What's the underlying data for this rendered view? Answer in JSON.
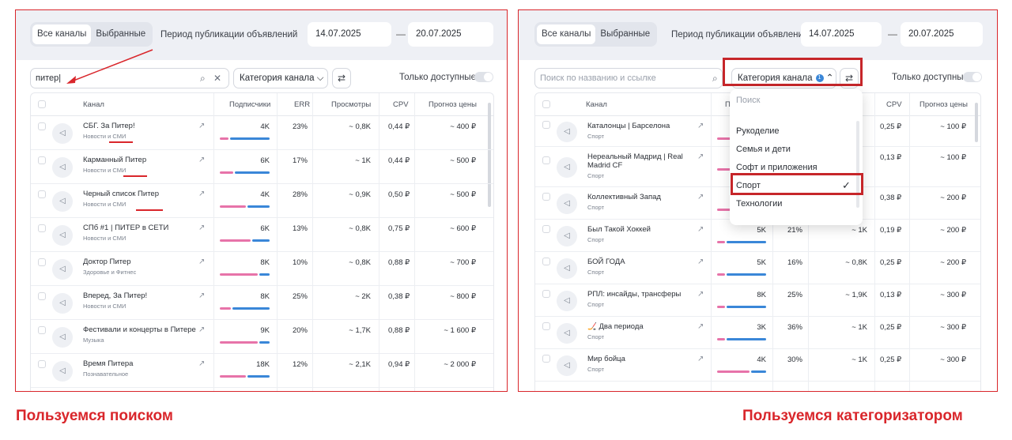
{
  "left": {
    "tabs": [
      "Все каналы",
      "Выбранные"
    ],
    "period_label": "Период публикации объявлений",
    "date_from": "14.07.2025",
    "date_to": "20.07.2025",
    "dash": "—",
    "search_value": "питер",
    "search_icon": "search-icon",
    "clear_icon": "close-icon",
    "category_label": "Категория канала",
    "category_chevron": "⌵",
    "filter_icon": "⇄",
    "only_available": "Только доступные",
    "columns": [
      "Канал",
      "Подписчики",
      "ERR",
      "Просмотры",
      "CPV",
      "Прогноз цены"
    ],
    "rows": [
      {
        "name": "СБГ. За Питер!",
        "cat": "Новости и СМИ",
        "subs": "4K",
        "err": "23%",
        "views": "~ 0,8K",
        "cpv": "0,44 ₽",
        "price": "~ 400 ₽",
        "pink": 0.2,
        "blue": 0.8
      },
      {
        "name": "Карманный Питер",
        "cat": "Новости и СМИ",
        "subs": "6K",
        "err": "17%",
        "views": "~ 1K",
        "cpv": "0,44 ₽",
        "price": "~ 500 ₽",
        "pink": 0.3,
        "blue": 0.7
      },
      {
        "name": "Черный список Питер",
        "cat": "Новости и СМИ",
        "subs": "4K",
        "err": "28%",
        "views": "~ 0,9K",
        "cpv": "0,50 ₽",
        "price": "~ 500 ₽",
        "pink": 0.55,
        "blue": 0.45
      },
      {
        "name": "СПб #1 | ПИТЕР в СЕТИ",
        "cat": "Новости и СМИ",
        "subs": "6K",
        "err": "13%",
        "views": "~ 0,8K",
        "cpv": "0,75 ₽",
        "price": "~ 600 ₽",
        "pink": 0.65,
        "blue": 0.35
      },
      {
        "name": "Доктор Питер",
        "cat": "Здоровье и Фитнес",
        "subs": "8K",
        "err": "10%",
        "views": "~ 0,8K",
        "cpv": "0,88 ₽",
        "price": "~ 700 ₽",
        "pink": 0.8,
        "blue": 0.2
      },
      {
        "name": "Вперед, За Питер!",
        "cat": "Новости и СМИ",
        "subs": "8K",
        "err": "25%",
        "views": "~ 2K",
        "cpv": "0,38 ₽",
        "price": "~ 800 ₽",
        "pink": 0.25,
        "blue": 0.75
      },
      {
        "name": "Фестивали и концерты в Питере",
        "cat": "Музыка",
        "subs": "9K",
        "err": "20%",
        "views": "~ 1,7K",
        "cpv": "0,88 ₽",
        "price": "~ 1 600 ₽",
        "pink": 0.8,
        "blue": 0.2
      },
      {
        "name": "Время Питера",
        "cat": "Познавательное",
        "subs": "18K",
        "err": "12%",
        "views": "~ 2,1K",
        "cpv": "0,94 ₽",
        "price": "~ 2 000 ₽",
        "pink": 0.55,
        "blue": 0.45
      }
    ],
    "caption": "Пользуемся поиском"
  },
  "right": {
    "tabs": [
      "Все каналы",
      "Выбранные"
    ],
    "period_label": "Период публикации объявлений",
    "date_from": "14.07.2025",
    "date_to": "20.07.2025",
    "dash": "—",
    "search_placeholder": "Поиск по названию и ссылке",
    "category_label": "Категория канала",
    "category_count": "1",
    "category_chevron": "⌃",
    "filter_icon": "⇄",
    "only_available": "Только доступные",
    "columns": [
      "Канал",
      "П",
      "CPV",
      "Прогноз цены"
    ],
    "rows": [
      {
        "name": "Каталонцы | Барселона",
        "cat": "Спорт",
        "subs": "",
        "err": "",
        "views": "",
        "cpv": "0,25 ₽",
        "price": "~ 100 ₽",
        "pink": 0.3,
        "blue": 0.7
      },
      {
        "name": "Нереальный Мадрид | Real Madrid CF",
        "cat": "Спорт",
        "subs": "",
        "err": "",
        "views": "",
        "cpv": "0,13 ₽",
        "price": "~ 100 ₽",
        "pink": 0.3,
        "blue": 0.7
      },
      {
        "name": "Коллективный Запад",
        "cat": "Спорт",
        "subs": "",
        "err": "",
        "views": "",
        "cpv": "0,38 ₽",
        "price": "~ 200 ₽",
        "pink": 0.3,
        "blue": 0.7
      },
      {
        "name": "Был Такой Хоккей",
        "cat": "Спорт",
        "subs": "5K",
        "err": "21%",
        "views": "~ 1K",
        "cpv": "0,19 ₽",
        "price": "~ 200 ₽",
        "pink": 0.2,
        "blue": 0.8
      },
      {
        "name": "БОЙ ГОДА",
        "cat": "Спорт",
        "subs": "5K",
        "err": "16%",
        "views": "~ 0,8K",
        "cpv": "0,25 ₽",
        "price": "~ 200 ₽",
        "pink": 0.2,
        "blue": 0.8
      },
      {
        "name": "РПЛ: инсайды, трансферы",
        "cat": "Спорт",
        "subs": "8K",
        "err": "25%",
        "views": "~ 1,9K",
        "cpv": "0,13 ₽",
        "price": "~ 300 ₽",
        "pink": 0.2,
        "blue": 0.8
      },
      {
        "name": "🏒 Два периода",
        "cat": "Спорт",
        "subs": "3K",
        "err": "36%",
        "views": "~ 1K",
        "cpv": "0,25 ₽",
        "price": "~ 300 ₽",
        "pink": 0.2,
        "blue": 0.8
      },
      {
        "name": "Мир бойца",
        "cat": "Спорт",
        "subs": "4K",
        "err": "30%",
        "views": "~ 1K",
        "cpv": "0,25 ₽",
        "price": "~ 300 ₽",
        "pink": 0.7,
        "blue": 0.3
      }
    ],
    "dropdown": {
      "placeholder": "Поиск",
      "items": [
        "Рукоделие",
        "Семья и дети",
        "Софт и приложения",
        "Спорт",
        "Технологии"
      ],
      "selected": "Спорт",
      "check": "✓"
    },
    "caption": "Пользуемся категоризатором"
  },
  "colors": {
    "accent_red": "#d9262b",
    "pink": "#e773a9",
    "blue": "#3a87d8"
  }
}
